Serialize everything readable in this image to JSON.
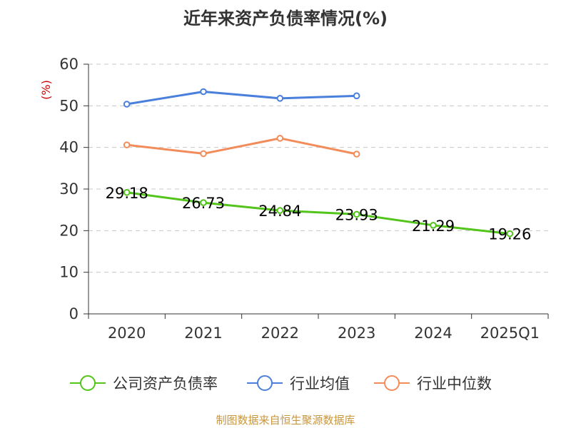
{
  "chart_data": {
    "type": "line",
    "title": "近年来资产负债率情况(%)",
    "ylabel": "(%)",
    "categories": [
      "2020",
      "2021",
      "2022",
      "2023",
      "2024",
      "2025Q1"
    ],
    "ylim": [
      0,
      60
    ],
    "yticks": [
      "0",
      "10",
      "20",
      "30",
      "40",
      "50",
      "60"
    ],
    "grid": true,
    "legend_position": "bottom",
    "series": [
      {
        "name": "公司资产负债率",
        "color": "#52c41a",
        "values": [
          29.18,
          26.73,
          24.84,
          23.93,
          21.29,
          19.26
        ],
        "labels": [
          "29.18",
          "26.73",
          "24.84",
          "23.93",
          "21.29",
          "19.26"
        ]
      },
      {
        "name": "行业均值",
        "color": "#4a7fdc",
        "values": [
          50.4,
          53.4,
          51.8,
          52.4,
          null,
          null
        ]
      },
      {
        "name": "行业中位数",
        "color": "#f28c5b",
        "values": [
          40.6,
          38.5,
          42.2,
          38.4,
          null,
          null
        ]
      }
    ],
    "source": "制图数据来自恒生聚源数据库",
    "ylabel_color": "#cc0000",
    "source_color": "#c8963c"
  }
}
